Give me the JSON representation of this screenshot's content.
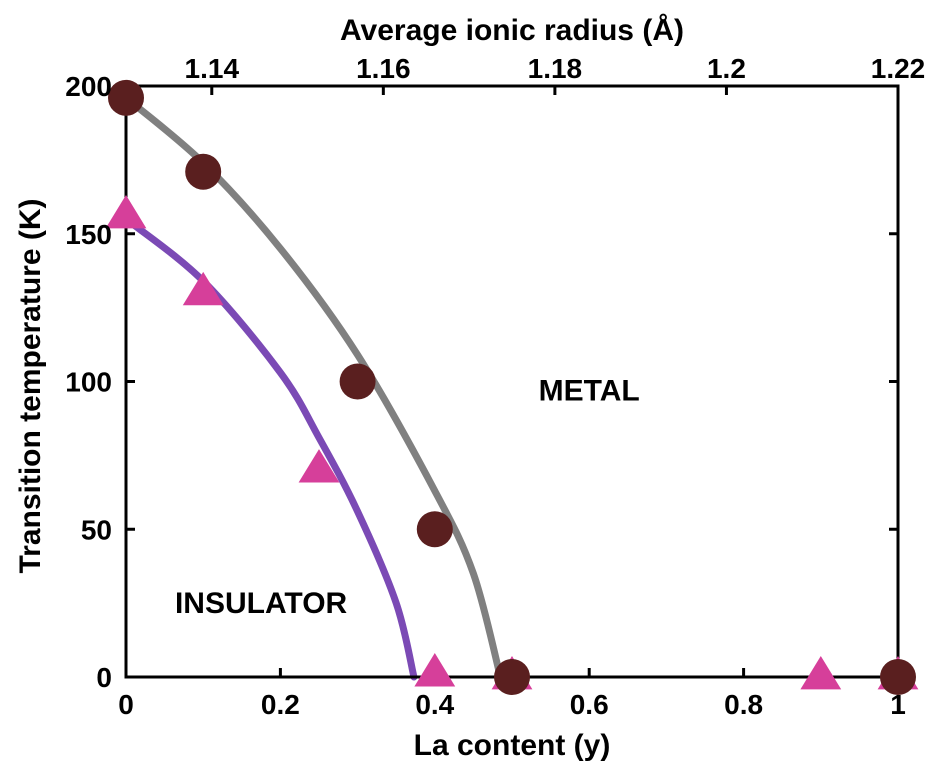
{
  "chart_data": {
    "type": "scatter",
    "x_axis": {
      "label": "La content (y)",
      "lim": [
        0,
        1
      ],
      "ticks": [
        0,
        0.2,
        0.4,
        0.6,
        0.8,
        1
      ],
      "tick_labels": [
        "0",
        "0.2",
        "0.4",
        "0.6",
        "0.8",
        "1"
      ]
    },
    "x_axis_top": {
      "label": "Average ionic radius (Å)",
      "lim": [
        1.13,
        1.22
      ],
      "ticks": [
        1.14,
        1.16,
        1.18,
        1.2,
        1.22
      ],
      "tick_labels": [
        "1.14",
        "1.16",
        "1.18",
        "1.2",
        "1.22"
      ]
    },
    "y_axis": {
      "label": "Transition temperature (K)",
      "lim": [
        0,
        200
      ],
      "ticks": [
        0,
        50,
        100,
        150,
        200
      ],
      "tick_labels": [
        "0",
        "50",
        "100",
        "150",
        "200"
      ]
    },
    "grid": false,
    "series": [
      {
        "marker": "circle",
        "marker_color": "#5a1f1f",
        "line_color": "#808080",
        "points": [
          [
            0,
            196
          ],
          [
            0.1,
            171
          ],
          [
            0.3,
            100
          ],
          [
            0.4,
            50
          ],
          [
            0.5,
            0
          ],
          [
            1.0,
            0
          ]
        ],
        "curve": [
          [
            0,
            196
          ],
          [
            0.1,
            174
          ],
          [
            0.2,
            145
          ],
          [
            0.3,
            109
          ],
          [
            0.4,
            63
          ],
          [
            0.45,
            35
          ],
          [
            0.485,
            0
          ]
        ]
      },
      {
        "marker": "triangle",
        "marker_color": "#d63f9a",
        "line_color": "#7b4ab5",
        "points": [
          [
            0,
            156
          ],
          [
            0.1,
            130
          ],
          [
            0.25,
            70
          ],
          [
            0.4,
            1
          ],
          [
            0.5,
            0
          ],
          [
            0.9,
            0
          ],
          [
            1.0,
            0
          ]
        ],
        "curve": [
          [
            0,
            155
          ],
          [
            0.1,
            134
          ],
          [
            0.2,
            103
          ],
          [
            0.25,
            81
          ],
          [
            0.3,
            56
          ],
          [
            0.35,
            25
          ],
          [
            0.373,
            0
          ]
        ]
      }
    ],
    "annotations": [
      {
        "text": "METAL",
        "x": 0.6,
        "y": 97
      },
      {
        "text": "INSULATOR",
        "x": 0.175,
        "y": 25
      }
    ]
  }
}
